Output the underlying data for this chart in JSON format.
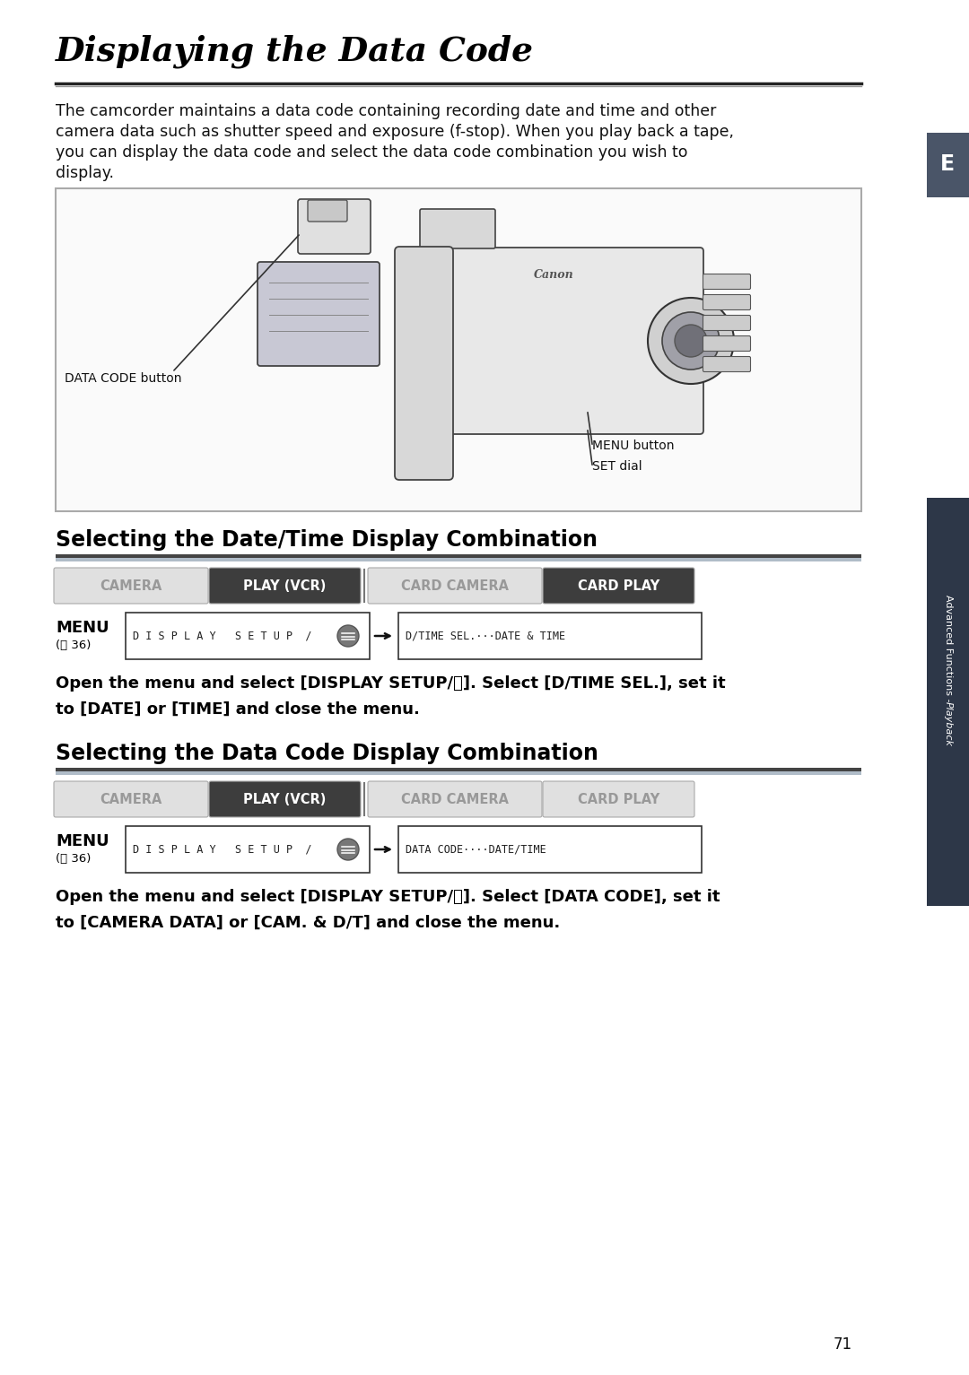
{
  "title": "Displaying the Data Code",
  "body_text_line1": "The camcorder maintains a data code containing recording date and time and other",
  "body_text_line2": "camera data such as shutter speed and exposure (f-stop). When you play back a tape,",
  "body_text_line3": "you can display the data code and select the data code combination you wish to",
  "body_text_line4": "display.",
  "section1_title": "Selecting the Date/Time Display Combination",
  "section2_title": "Selecting the Data Code Display Combination",
  "tab_labels": [
    "CAMERA",
    "PLAY (VCR)",
    "CARD CAMERA",
    "CARD PLAY"
  ],
  "tab_active_section1": [
    false,
    true,
    false,
    true
  ],
  "tab_active_section2": [
    false,
    true,
    false,
    false
  ],
  "tab_active_color": "#3d3d3d",
  "tab_inactive_color": "#e0e0e0",
  "tab_active_text": "#ffffff",
  "tab_inactive_text": "#999999",
  "menu_label": "MENU",
  "menu_ref": "(⧄ 36)",
  "menu_box1_text": "DISPLAY SETUP /",
  "menu_box2_sec1": "D/TIME SEL.···DATE & TIME",
  "menu_box2_sec2": "DATA CODE····DATE/TIME",
  "instr1_line1": "Open the menu and select [DISPLAY SETUP/",
  "instr1_line1b": "]. Select [D/TIME SEL.], set it",
  "instr1_line2": "to [DATE] or [TIME] and close the menu.",
  "instr2_line1": "Open the menu and select [DISPLAY SETUP/",
  "instr2_line1b": "]. Select [DATA CODE], set it",
  "instr2_line2": "to [CAMERA DATA] or [CAM. & D/T] and close the menu.",
  "sidebar_E_color": "#4a5568",
  "sidebar_right_dark": "#2d3748",
  "sidebar_right_light": "#4a5568",
  "page_number": "71",
  "bg_color": "#ffffff",
  "data_code_button_label": "DATA CODE button",
  "menu_button_label": "MENU button",
  "set_dial_label": "SET dial"
}
